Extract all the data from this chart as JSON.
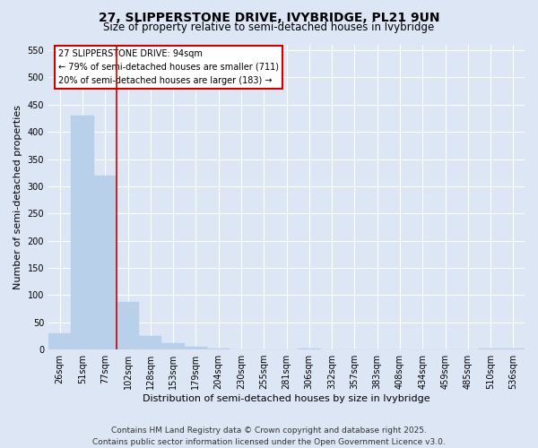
{
  "title_line1": "27, SLIPPERSTONE DRIVE, IVYBRIDGE, PL21 9UN",
  "title_line2": "Size of property relative to semi-detached houses in Ivybridge",
  "xlabel": "Distribution of semi-detached houses by size in Ivybridge",
  "ylabel": "Number of semi-detached properties",
  "categories": [
    "26sqm",
    "51sqm",
    "77sqm",
    "102sqm",
    "128sqm",
    "153sqm",
    "179sqm",
    "204sqm",
    "230sqm",
    "255sqm",
    "281sqm",
    "306sqm",
    "332sqm",
    "357sqm",
    "383sqm",
    "408sqm",
    "434sqm",
    "459sqm",
    "485sqm",
    "510sqm",
    "536sqm"
  ],
  "values": [
    30,
    430,
    320,
    88,
    25,
    12,
    5,
    2,
    0,
    0,
    0,
    2,
    0,
    0,
    0,
    0,
    0,
    0,
    0,
    2,
    2
  ],
  "bar_color": "#b8d0ea",
  "bar_edgecolor": "#b8d0ea",
  "vline_pos": 2.5,
  "vline_color": "#cc0000",
  "annotation_title": "27 SLIPPERSTONE DRIVE: 94sqm",
  "annotation_line2": "← 79% of semi-detached houses are smaller (711)",
  "annotation_line3": "20% of semi-detached houses are larger (183) →",
  "annotation_box_facecolor": "#ffffff",
  "annotation_box_edgecolor": "#cc0000",
  "ylim": [
    0,
    560
  ],
  "yticks": [
    0,
    50,
    100,
    150,
    200,
    250,
    300,
    350,
    400,
    450,
    500,
    550
  ],
  "background_color": "#dce6f5",
  "grid_color": "#ffffff",
  "footer": "Contains HM Land Registry data © Crown copyright and database right 2025.\nContains public sector information licensed under the Open Government Licence v3.0.",
  "title_fontsize": 10,
  "subtitle_fontsize": 8.5,
  "axis_label_fontsize": 8,
  "tick_fontsize": 7,
  "annotation_fontsize": 7,
  "footer_fontsize": 6.5
}
